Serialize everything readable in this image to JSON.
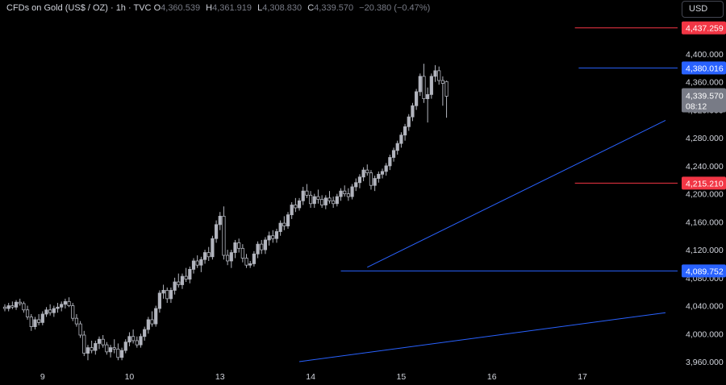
{
  "header": {
    "symbol": "CFDs on Gold (US$ / OZ) · 1h · TVC",
    "open_label": "O",
    "open": "4,360.539",
    "high_label": "H",
    "high": "4,361.919",
    "low_label": "L",
    "low": "4,308.830",
    "close_label": "C",
    "close": "4,339.570",
    "change": "−20.380 (−0.47%)",
    "currency": "USD"
  },
  "colors": {
    "background": "#000000",
    "candle": "#b2b5be",
    "trendline": "#2962ff",
    "resistance_red": "#f23645",
    "support_blue": "#2962ff",
    "price_label_bg": "#787b86"
  },
  "chart_data": {
    "type": "candlestick",
    "ylim": [
      3950,
      4460
    ],
    "y_ticks": [
      {
        "value": 3960,
        "label": "3,960.000"
      },
      {
        "value": 4000,
        "label": "4,000.000"
      },
      {
        "value": 4040,
        "label": "4,040.000"
      },
      {
        "value": 4080,
        "label": "4,080.000"
      },
      {
        "value": 4120,
        "label": "4,120.000"
      },
      {
        "value": 4160,
        "label": "4,160.000"
      },
      {
        "value": 4200,
        "label": "4,200.000"
      },
      {
        "value": 4240,
        "label": "4,240.000"
      },
      {
        "value": 4280,
        "label": "4,280.000"
      },
      {
        "value": 4320,
        "label": "4,320.000"
      },
      {
        "value": 4360,
        "label": "4,360.000"
      },
      {
        "value": 4400,
        "label": "4,400.000"
      }
    ],
    "x_ticks": [
      {
        "index": 10,
        "label": "9"
      },
      {
        "index": 33,
        "label": "10"
      },
      {
        "index": 57,
        "label": "13"
      },
      {
        "index": 81,
        "label": "14"
      },
      {
        "index": 105,
        "label": "15"
      },
      {
        "index": 129,
        "label": "16"
      },
      {
        "index": 153,
        "label": "17"
      }
    ],
    "levels": [
      {
        "value": 4437.259,
        "label": "4,437.259",
        "color": "red",
        "from_index": 151
      },
      {
        "value": 4380.016,
        "label": "4,380.016",
        "color": "blue",
        "from_index": 152
      },
      {
        "value": 4215.21,
        "label": "4,215.210",
        "color": "red",
        "from_index": 151
      },
      {
        "value": 4089.752,
        "label": "4,089.752",
        "color": "blue",
        "from_index": 89
      }
    ],
    "last_price": {
      "value": 4339.57,
      "label": "4,339.570",
      "countdown": "08:12"
    },
    "trendlines": [
      {
        "from": {
          "index": 96,
          "value": 4095
        },
        "to": {
          "index": 175,
          "value": 4305
        }
      },
      {
        "from": {
          "index": 78,
          "value": 3960
        },
        "to": {
          "index": 175,
          "value": 4030
        }
      }
    ],
    "candles": [
      [
        4038,
        4042,
        4032,
        4036
      ],
      [
        4036,
        4044,
        4032,
        4040
      ],
      [
        4040,
        4046,
        4035,
        4038
      ],
      [
        4038,
        4048,
        4034,
        4045
      ],
      [
        4045,
        4050,
        4040,
        4043
      ],
      [
        4043,
        4046,
        4030,
        4034
      ],
      [
        4034,
        4040,
        4020,
        4024
      ],
      [
        4024,
        4028,
        4004,
        4010
      ],
      [
        4010,
        4024,
        4006,
        4020
      ],
      [
        4020,
        4028,
        4012,
        4016
      ],
      [
        4016,
        4032,
        4012,
        4028
      ],
      [
        4028,
        4038,
        4024,
        4034
      ],
      [
        4034,
        4042,
        4026,
        4030
      ],
      [
        4030,
        4040,
        4024,
        4036
      ],
      [
        4036,
        4044,
        4030,
        4038
      ],
      [
        4038,
        4046,
        4032,
        4042
      ],
      [
        4042,
        4050,
        4036,
        4046
      ],
      [
        4046,
        4052,
        4038,
        4040
      ],
      [
        4040,
        4044,
        4018,
        4022
      ],
      [
        4022,
        4028,
        4010,
        4014
      ],
      [
        4014,
        4018,
        3994,
        3998
      ],
      [
        3998,
        4004,
        3968,
        3972
      ],
      [
        3972,
        3984,
        3962,
        3980
      ],
      [
        3980,
        3990,
        3972,
        3976
      ],
      [
        3976,
        3990,
        3970,
        3986
      ],
      [
        3986,
        3996,
        3978,
        3992
      ],
      [
        3992,
        3998,
        3980,
        3984
      ],
      [
        3984,
        3988,
        3970,
        3974
      ],
      [
        3974,
        3984,
        3966,
        3980
      ],
      [
        3980,
        3992,
        3972,
        3978
      ],
      [
        3978,
        3986,
        3962,
        3966
      ],
      [
        3966,
        3980,
        3962,
        3976
      ],
      [
        3976,
        3992,
        3972,
        3988
      ],
      [
        3988,
        4002,
        3982,
        3996
      ],
      [
        3996,
        4006,
        3986,
        3990
      ],
      [
        3990,
        3996,
        3980,
        3984
      ],
      [
        3984,
        4000,
        3980,
        3996
      ],
      [
        3996,
        4010,
        3990,
        4006
      ],
      [
        4006,
        4024,
        4000,
        4020
      ],
      [
        4020,
        4032,
        4010,
        4014
      ],
      [
        4014,
        4040,
        4010,
        4036
      ],
      [
        4036,
        4062,
        4030,
        4058
      ],
      [
        4058,
        4070,
        4050,
        4062
      ],
      [
        4062,
        4066,
        4044,
        4050
      ],
      [
        4050,
        4066,
        4044,
        4062
      ],
      [
        4062,
        4080,
        4056,
        4074
      ],
      [
        4074,
        4086,
        4066,
        4070
      ],
      [
        4070,
        4086,
        4064,
        4082
      ],
      [
        4082,
        4094,
        4074,
        4078
      ],
      [
        4078,
        4096,
        4072,
        4092
      ],
      [
        4092,
        4108,
        4086,
        4104
      ],
      [
        4104,
        4112,
        4094,
        4098
      ],
      [
        4098,
        4110,
        4088,
        4106
      ],
      [
        4106,
        4120,
        4100,
        4116
      ],
      [
        4116,
        4124,
        4104,
        4110
      ],
      [
        4110,
        4140,
        4106,
        4136
      ],
      [
        4136,
        4162,
        4130,
        4156
      ],
      [
        4156,
        4174,
        4148,
        4168
      ],
      [
        4168,
        4182,
        4106,
        4112
      ],
      [
        4112,
        4120,
        4098,
        4104
      ],
      [
        4104,
        4120,
        4094,
        4116
      ],
      [
        4116,
        4134,
        4108,
        4130
      ],
      [
        4130,
        4136,
        4116,
        4122
      ],
      [
        4122,
        4128,
        4102,
        4108
      ],
      [
        4108,
        4114,
        4094,
        4098
      ],
      [
        4098,
        4104,
        4094,
        4100
      ],
      [
        4100,
        4118,
        4096,
        4114
      ],
      [
        4114,
        4132,
        4108,
        4128
      ],
      [
        4128,
        4134,
        4114,
        4120
      ],
      [
        4120,
        4138,
        4114,
        4134
      ],
      [
        4134,
        4146,
        4126,
        4140
      ],
      [
        4140,
        4148,
        4130,
        4136
      ],
      [
        4136,
        4150,
        4130,
        4146
      ],
      [
        4146,
        4162,
        4140,
        4158
      ],
      [
        4158,
        4168,
        4148,
        4154
      ],
      [
        4154,
        4174,
        4150,
        4170
      ],
      [
        4170,
        4188,
        4164,
        4184
      ],
      [
        4184,
        4194,
        4174,
        4180
      ],
      [
        4180,
        4194,
        4176,
        4190
      ],
      [
        4190,
        4210,
        4184,
        4204
      ],
      [
        4204,
        4214,
        4194,
        4198
      ],
      [
        4198,
        4204,
        4180,
        4186
      ],
      [
        4186,
        4200,
        4180,
        4196
      ],
      [
        4196,
        4206,
        4186,
        4192
      ],
      [
        4192,
        4198,
        4180,
        4184
      ],
      [
        4184,
        4198,
        4178,
        4194
      ],
      [
        4194,
        4204,
        4186,
        4190
      ],
      [
        4190,
        4196,
        4180,
        4186
      ],
      [
        4186,
        4200,
        4182,
        4196
      ],
      [
        4196,
        4208,
        4190,
        4204
      ],
      [
        4204,
        4212,
        4196,
        4200
      ],
      [
        4200,
        4208,
        4190,
        4196
      ],
      [
        4196,
        4214,
        4192,
        4210
      ],
      [
        4210,
        4222,
        4204,
        4216
      ],
      [
        4216,
        4228,
        4208,
        4224
      ],
      [
        4224,
        4238,
        4218,
        4234
      ],
      [
        4234,
        4242,
        4226,
        4230
      ],
      [
        4230,
        4234,
        4206,
        4212
      ],
      [
        4212,
        4226,
        4204,
        4222
      ],
      [
        4222,
        4232,
        4216,
        4228
      ],
      [
        4228,
        4236,
        4222,
        4232
      ],
      [
        4232,
        4244,
        4226,
        4240
      ],
      [
        4240,
        4256,
        4234,
        4252
      ],
      [
        4252,
        4266,
        4246,
        4262
      ],
      [
        4262,
        4276,
        4256,
        4272
      ],
      [
        4272,
        4288,
        4266,
        4284
      ],
      [
        4284,
        4300,
        4276,
        4296
      ],
      [
        4296,
        4314,
        4290,
        4310
      ],
      [
        4310,
        4330,
        4304,
        4326
      ],
      [
        4326,
        4350,
        4320,
        4346
      ],
      [
        4346,
        4372,
        4340,
        4368
      ],
      [
        4368,
        4386,
        4330,
        4336
      ],
      [
        4336,
        4352,
        4302,
        4342
      ],
      [
        4342,
        4372,
        4336,
        4368
      ],
      [
        4368,
        4384,
        4360,
        4376
      ],
      [
        4376,
        4382,
        4356,
        4362
      ],
      [
        4362,
        4368,
        4326,
        4358
      ],
      [
        4360.539,
        4361.919,
        4308.83,
        4339.57
      ]
    ]
  }
}
